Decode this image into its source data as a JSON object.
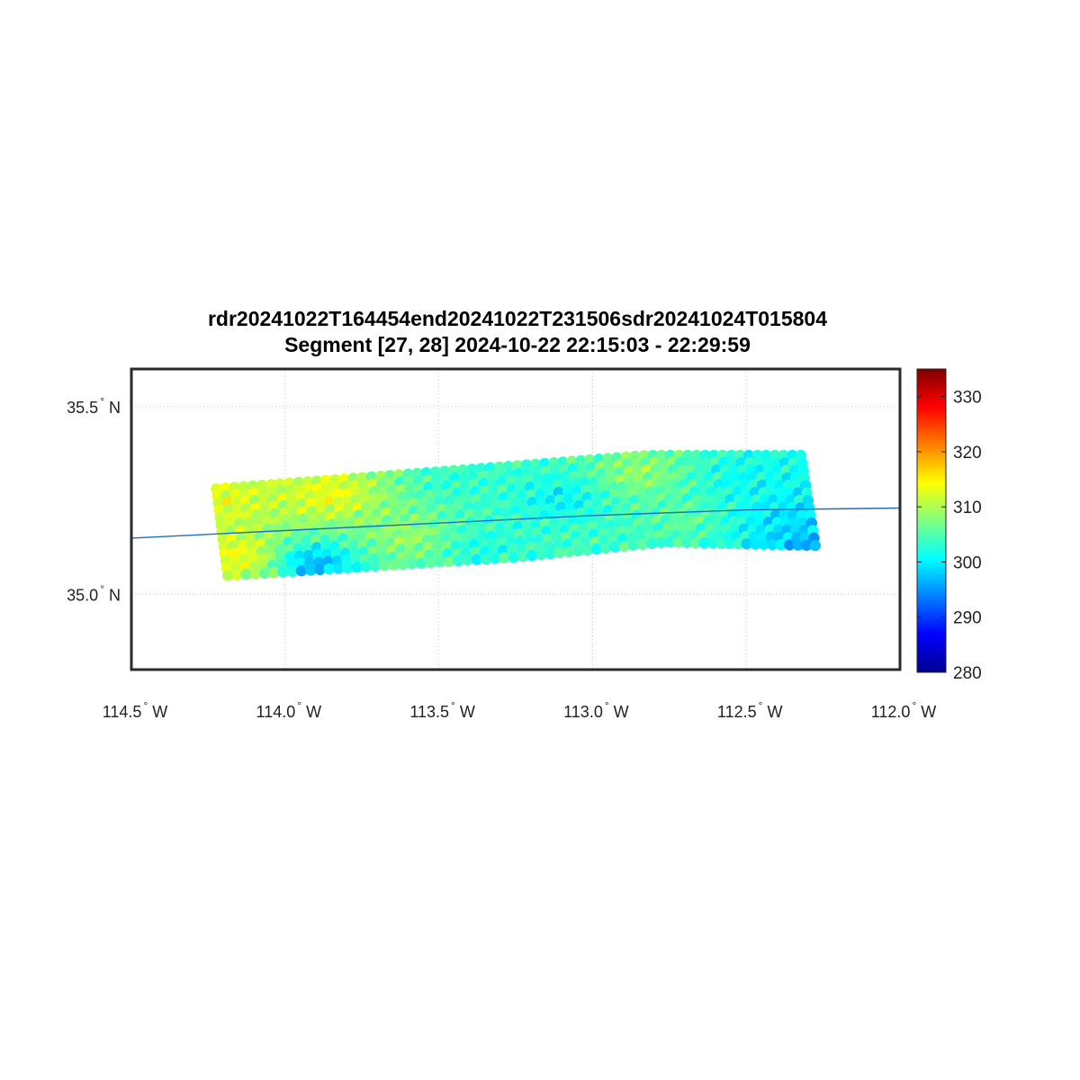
{
  "title": {
    "line1": "rdr20241022T164454end20241022T231506sdr20241024T015804",
    "line2": "Segment [27, 28] 2024-10-22 22:15:03 - 22:29:59"
  },
  "map": {
    "lon_range": [
      -114.5,
      -112.0
    ],
    "lat_range": [
      34.8,
      35.6
    ],
    "grid": true,
    "lon_ticks": [
      {
        "value": -114.5,
        "label": "114.5",
        "hemi": "W"
      },
      {
        "value": -114.0,
        "label": "114.0",
        "hemi": "W"
      },
      {
        "value": -113.5,
        "label": "113.5",
        "hemi": "W"
      },
      {
        "value": -113.0,
        "label": "113.0",
        "hemi": "W"
      },
      {
        "value": -112.5,
        "label": "112.5",
        "hemi": "W"
      },
      {
        "value": -112.0,
        "label": "112.0",
        "hemi": "W"
      }
    ],
    "lat_ticks": [
      {
        "value": 35.5,
        "label": "35.5",
        "hemi": "N"
      },
      {
        "value": 35.0,
        "label": "35.0",
        "hemi": "N"
      }
    ],
    "degree_symbol": "°",
    "track_line": {
      "color": "#1f6fbf",
      "points": [
        [
          -114.5,
          35.15
        ],
        [
          -114.0,
          35.17
        ],
        [
          -113.5,
          35.19
        ],
        [
          -113.0,
          35.21
        ],
        [
          -112.5,
          35.225
        ],
        [
          -112.0,
          35.23
        ]
      ]
    },
    "swaths": [
      {
        "corners": [
          [
            -114.24,
            35.29
          ],
          [
            -113.29,
            35.35
          ],
          [
            -113.24,
            35.09
          ],
          [
            -114.2,
            35.04
          ]
        ]
      },
      {
        "corners": [
          [
            -113.29,
            35.35
          ],
          [
            -112.82,
            35.38
          ],
          [
            -112.76,
            35.13
          ],
          [
            -113.24,
            35.09
          ]
        ]
      },
      {
        "corners": [
          [
            -112.82,
            35.38
          ],
          [
            -112.31,
            35.38
          ],
          [
            -112.26,
            35.12
          ],
          [
            -112.76,
            35.13
          ]
        ]
      }
    ],
    "value_field": {
      "description_free": true,
      "anchors": [
        {
          "lon": -114.2,
          "lat": 35.25,
          "v": 313
        },
        {
          "lon": -114.15,
          "lat": 35.1,
          "v": 314
        },
        {
          "lon": -113.85,
          "lat": 35.26,
          "v": 314
        },
        {
          "lon": -113.9,
          "lat": 35.08,
          "v": 296
        },
        {
          "lon": -113.6,
          "lat": 35.15,
          "v": 309
        },
        {
          "lon": -113.45,
          "lat": 35.3,
          "v": 303
        },
        {
          "lon": -113.35,
          "lat": 35.12,
          "v": 302
        },
        {
          "lon": -113.1,
          "lat": 35.25,
          "v": 300
        },
        {
          "lon": -113.05,
          "lat": 35.14,
          "v": 304
        },
        {
          "lon": -112.85,
          "lat": 35.32,
          "v": 309
        },
        {
          "lon": -112.7,
          "lat": 35.2,
          "v": 306
        },
        {
          "lon": -112.5,
          "lat": 35.3,
          "v": 301
        },
        {
          "lon": -112.35,
          "lat": 35.2,
          "v": 299
        },
        {
          "lon": -112.3,
          "lat": 35.13,
          "v": 296
        }
      ]
    }
  },
  "colorbar": {
    "range": [
      280,
      335
    ],
    "ticks": [
      "330",
      "320",
      "310",
      "300",
      "290",
      "280"
    ],
    "tick_values": [
      330,
      320,
      310,
      300,
      290,
      280
    ],
    "colormap": "jet"
  }
}
